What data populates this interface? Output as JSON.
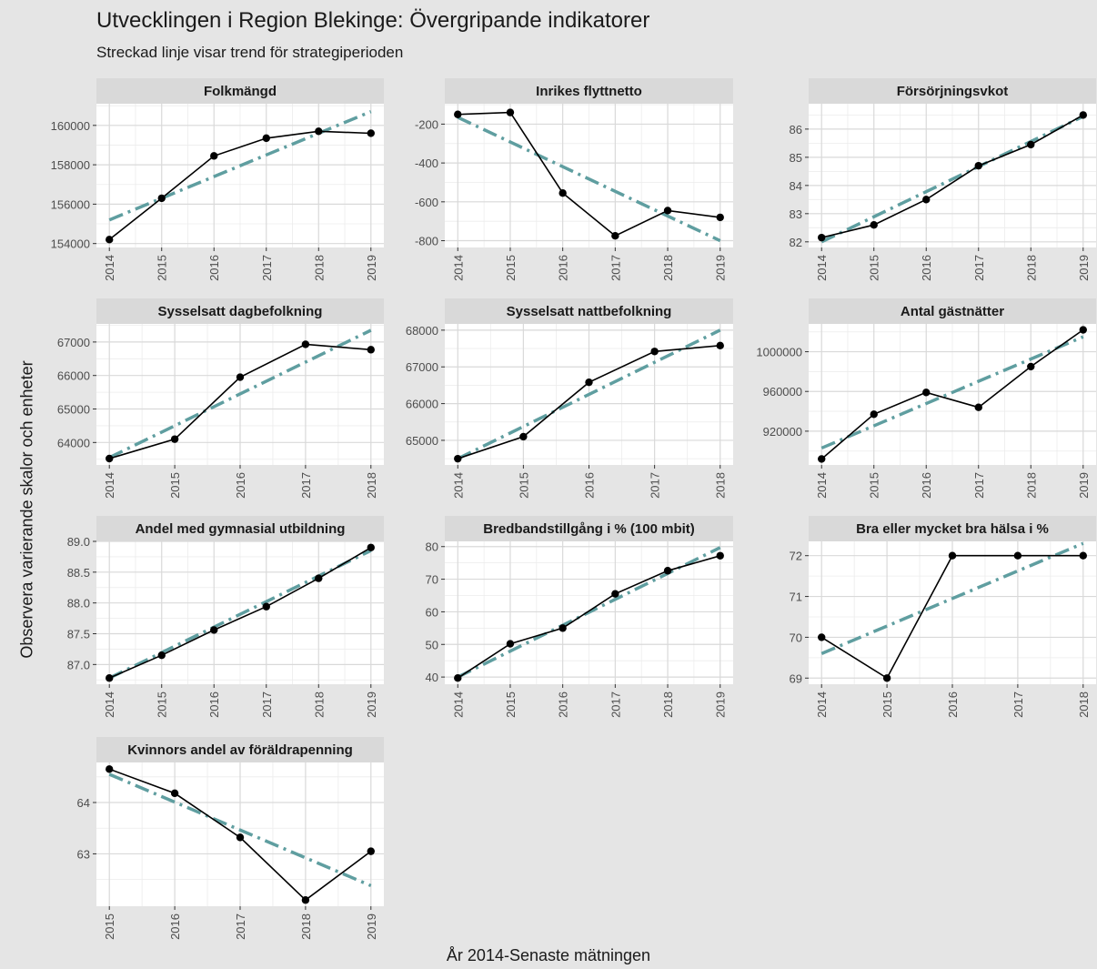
{
  "title": "Utvecklingen i Region Blekinge: Övergripande indikatorer",
  "subtitle": "Streckad linje visar trend för strategiperioden",
  "xlabel": "År 2014-Senaste mätningen",
  "ylabel": "Observera varierande skalor och enheter",
  "colors": {
    "line": "#000000",
    "point": "#000000",
    "trend": "#5f9ea0",
    "panel": "#ffffff",
    "strip": "#d9d9d9",
    "background": "#e5e5e5"
  },
  "chart_data": [
    {
      "type": "line",
      "title": "Folkmängd",
      "x": [
        2014,
        2015,
        2016,
        2017,
        2018,
        2019
      ],
      "values": [
        154200,
        156300,
        158450,
        159350,
        159700,
        159600
      ],
      "trend": [
        155200,
        160700
      ],
      "yticks": [
        154000,
        156000,
        158000,
        160000
      ],
      "ylim": [
        153800,
        161100
      ],
      "grid": true
    },
    {
      "type": "line",
      "title": "Inrikes flyttnetto",
      "x": [
        2014,
        2015,
        2016,
        2017,
        2018,
        2019
      ],
      "values": [
        -150,
        -140,
        -555,
        -775,
        -645,
        -680
      ],
      "trend": [
        -165,
        -800
      ],
      "yticks": [
        -800,
        -600,
        -400,
        -200
      ],
      "ylim": [
        -835,
        -95
      ],
      "grid": true
    },
    {
      "type": "line",
      "title": "Försörjningsvkot",
      "x": [
        2014,
        2015,
        2016,
        2017,
        2018,
        2019
      ],
      "values": [
        82.15,
        82.6,
        83.5,
        84.7,
        85.45,
        86.5
      ],
      "trend": [
        82.0,
        86.45
      ],
      "yticks": [
        82,
        83,
        84,
        85,
        86
      ],
      "ylim": [
        81.8,
        86.9
      ],
      "grid": true
    },
    {
      "type": "line",
      "title": "Sysselsatt dagbefolkning",
      "x": [
        2014,
        2015,
        2016,
        2017,
        2018
      ],
      "values": [
        63520,
        64100,
        65950,
        66930,
        66770
      ],
      "trend": [
        63550,
        67350
      ],
      "yticks": [
        64000,
        65000,
        66000,
        67000
      ],
      "ylim": [
        63330,
        67540
      ],
      "grid": true
    },
    {
      "type": "line",
      "title": "Sysselsatt nattbefolkning",
      "x": [
        2014,
        2015,
        2016,
        2017,
        2018
      ],
      "values": [
        64500,
        65100,
        66580,
        67420,
        67580
      ],
      "trend": [
        64500,
        68000
      ],
      "yticks": [
        65000,
        66000,
        67000,
        68000
      ],
      "ylim": [
        64330,
        68170
      ],
      "grid": true
    },
    {
      "type": "line",
      "title": "Antal gästnätter",
      "x": [
        2014,
        2015,
        2016,
        2017,
        2018,
        2019
      ],
      "values": [
        892000,
        937000,
        959000,
        944000,
        985000,
        1022000
      ],
      "trend": [
        903000,
        1015000
      ],
      "yticks": [
        920000,
        960000,
        1000000
      ],
      "ylim": [
        886000,
        1028000
      ],
      "grid": true
    },
    {
      "type": "line",
      "title": "Andel med gymnasial utbildning",
      "x": [
        2014,
        2015,
        2016,
        2017,
        2018,
        2019
      ],
      "values": [
        86.78,
        87.15,
        87.56,
        87.94,
        88.4,
        88.9
      ],
      "trend": [
        86.78,
        88.85
      ],
      "yticks": [
        87.0,
        87.5,
        88.0,
        88.5,
        89.0
      ],
      "ylim": [
        86.68,
        89.0
      ],
      "decimals": 1,
      "grid": true
    },
    {
      "type": "line",
      "title": "Bredbandstillgång i % (100 mbit)",
      "x": [
        2014,
        2015,
        2016,
        2017,
        2018,
        2019
      ],
      "values": [
        39.7,
        50.2,
        55.0,
        65.5,
        72.6,
        77.2
      ],
      "trend": [
        40.0,
        79.7
      ],
      "yticks": [
        40,
        50,
        60,
        70,
        80
      ],
      "ylim": [
        37.8,
        81.6
      ],
      "grid": true
    },
    {
      "type": "line",
      "title": "Bra eller mycket bra hälsa i %",
      "x": [
        2014,
        2015,
        2016,
        2017,
        2018
      ],
      "values": [
        70,
        69,
        72,
        72,
        72
      ],
      "trend": [
        69.6,
        72.3
      ],
      "yticks": [
        69,
        70,
        71,
        72
      ],
      "ylim": [
        68.85,
        72.35
      ],
      "grid": true
    },
    {
      "type": "line",
      "title": "Kvinnors andel av föräldrapenning",
      "x": [
        2015,
        2016,
        2017,
        2018,
        2019
      ],
      "values": [
        64.65,
        64.18,
        63.32,
        62.1,
        63.05
      ],
      "trend": [
        64.55,
        62.38
      ],
      "yticks": [
        63,
        64
      ],
      "ylim": [
        61.98,
        64.78
      ],
      "grid": true
    }
  ]
}
